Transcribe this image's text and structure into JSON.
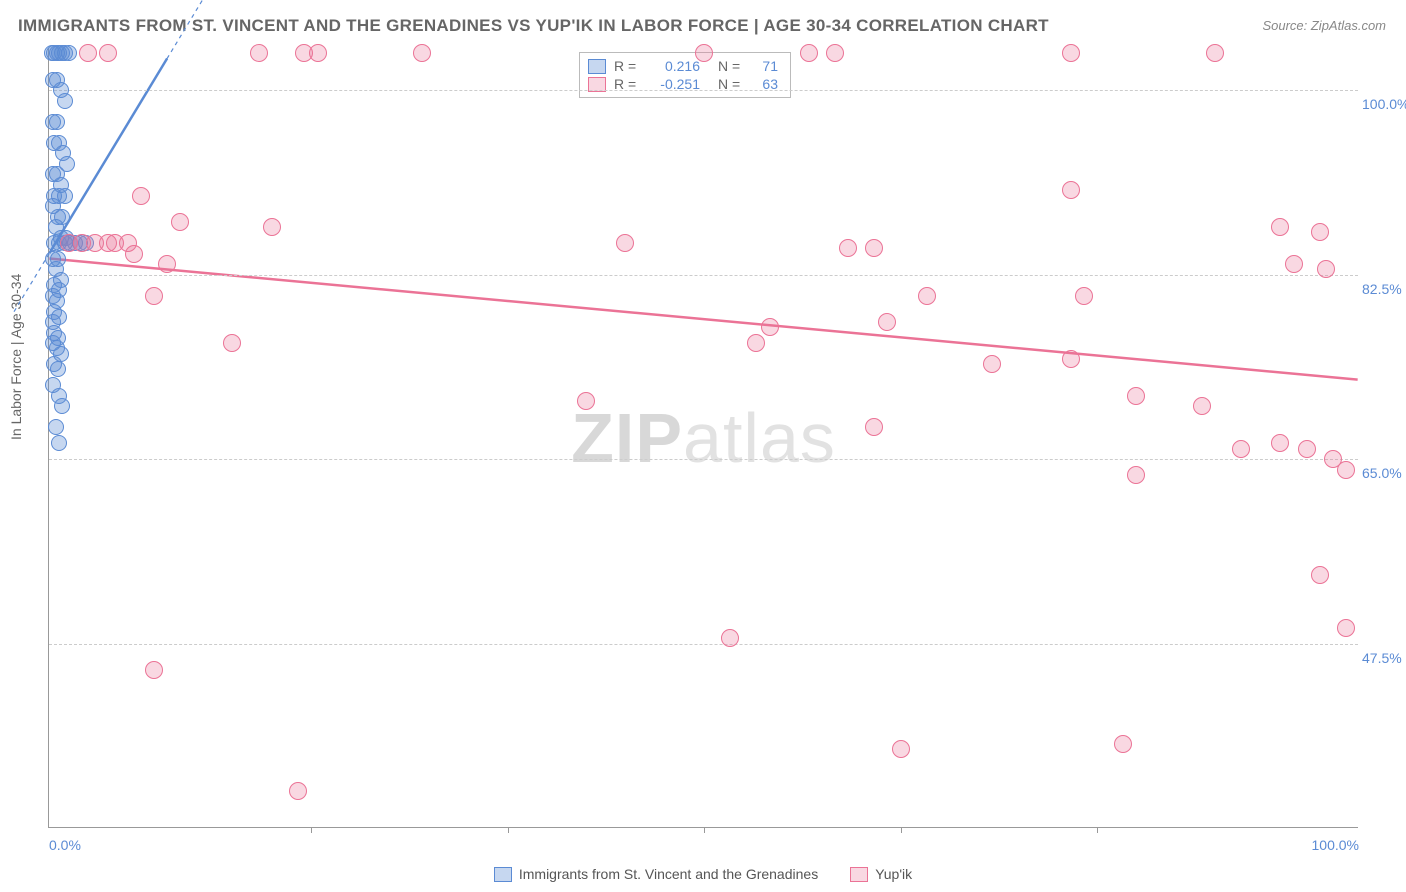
{
  "title": "IMMIGRANTS FROM ST. VINCENT AND THE GRENADINES VS YUP'IK IN LABOR FORCE | AGE 30-34 CORRELATION CHART",
  "source": "Source: ZipAtlas.com",
  "y_axis_label": "In Labor Force | Age 30-34",
  "watermark_a": "ZIP",
  "watermark_b": "atlas",
  "x_domain": [
    0,
    100
  ],
  "y_domain": [
    30,
    104
  ],
  "y_ticks": [
    {
      "v": 100.0,
      "label": "100.0%"
    },
    {
      "v": 82.5,
      "label": "82.5%"
    },
    {
      "v": 65.0,
      "label": "65.0%"
    },
    {
      "v": 47.5,
      "label": "47.5%"
    }
  ],
  "x_ticks": [
    {
      "v": 0.0,
      "label": "0.0%",
      "align": "left"
    },
    {
      "v": 100.0,
      "label": "100.0%",
      "align": "right"
    }
  ],
  "x_minor_ticks": [
    20,
    35,
    50,
    65,
    80
  ],
  "series": [
    {
      "name": "Immigrants from St. Vincent and the Grenadines",
      "color_fill": "rgba(91,139,212,0.35)",
      "color_stroke": "#5b8bd4",
      "r": 0.216,
      "n": 71,
      "trend": {
        "x1": 0,
        "y1": 84.5,
        "x2": 9,
        "y2": 103
      },
      "marker_radius": 8,
      "points": [
        [
          0.2,
          103.5
        ],
        [
          0.4,
          103.5
        ],
        [
          0.6,
          103.5
        ],
        [
          0.8,
          103.5
        ],
        [
          1.0,
          103.5
        ],
        [
          1.2,
          103.5
        ],
        [
          1.5,
          103.5
        ],
        [
          0.3,
          101
        ],
        [
          0.6,
          101
        ],
        [
          0.9,
          100
        ],
        [
          1.2,
          99
        ],
        [
          0.3,
          97
        ],
        [
          0.6,
          97
        ],
        [
          0.4,
          95
        ],
        [
          0.8,
          95
        ],
        [
          1.1,
          94
        ],
        [
          1.4,
          93
        ],
        [
          0.3,
          92
        ],
        [
          0.6,
          92
        ],
        [
          0.9,
          91
        ],
        [
          0.4,
          90
        ],
        [
          0.8,
          90
        ],
        [
          1.2,
          90
        ],
        [
          0.3,
          89
        ],
        [
          0.7,
          88
        ],
        [
          1.0,
          88
        ],
        [
          0.5,
          87
        ],
        [
          0.9,
          86
        ],
        [
          1.3,
          86
        ],
        [
          0.4,
          85.5
        ],
        [
          0.8,
          85.5
        ],
        [
          1.2,
          85.5
        ],
        [
          1.6,
          85.5
        ],
        [
          2.0,
          85.5
        ],
        [
          2.4,
          85.5
        ],
        [
          2.8,
          85.5
        ],
        [
          0.3,
          84
        ],
        [
          0.7,
          84
        ],
        [
          0.5,
          83
        ],
        [
          0.9,
          82
        ],
        [
          0.4,
          81.5
        ],
        [
          0.8,
          81
        ],
        [
          0.3,
          80.5
        ],
        [
          0.6,
          80
        ],
        [
          0.4,
          79
        ],
        [
          0.8,
          78.5
        ],
        [
          0.3,
          78
        ],
        [
          0.4,
          77
        ],
        [
          0.7,
          76.5
        ],
        [
          0.3,
          76
        ],
        [
          0.6,
          75.5
        ],
        [
          0.9,
          75
        ],
        [
          0.4,
          74
        ],
        [
          0.7,
          73.5
        ],
        [
          0.3,
          72
        ],
        [
          0.8,
          71
        ],
        [
          1.0,
          70
        ],
        [
          0.5,
          68
        ],
        [
          0.8,
          66.5
        ]
      ]
    },
    {
      "name": "Yup'ik",
      "color_fill": "rgba(235,115,150,0.28)",
      "color_stroke": "#eb7396",
      "r": -0.251,
      "n": 63,
      "trend": {
        "x1": 0,
        "y1": 84,
        "x2": 100,
        "y2": 72.5
      },
      "marker_radius": 9,
      "points": [
        [
          3,
          103.5
        ],
        [
          4.5,
          103.5
        ],
        [
          16,
          103.5
        ],
        [
          19.5,
          103.5
        ],
        [
          20.5,
          103.5
        ],
        [
          28.5,
          103.5
        ],
        [
          50,
          103.5
        ],
        [
          58,
          103.5
        ],
        [
          60,
          103.5
        ],
        [
          78,
          103.5
        ],
        [
          89,
          103.5
        ],
        [
          7,
          90
        ],
        [
          78,
          90.5
        ],
        [
          10,
          87.5
        ],
        [
          17,
          87
        ],
        [
          1.5,
          85.5
        ],
        [
          2.5,
          85.5
        ],
        [
          3.5,
          85.5
        ],
        [
          4.5,
          85.5
        ],
        [
          5,
          85.5
        ],
        [
          6,
          85.5
        ],
        [
          6.5,
          84.5
        ],
        [
          44,
          85.5
        ],
        [
          61,
          85
        ],
        [
          63,
          85
        ],
        [
          94,
          87
        ],
        [
          97,
          86.5
        ],
        [
          9,
          83.5
        ],
        [
          95,
          83.5
        ],
        [
          97.5,
          83
        ],
        [
          8,
          80.5
        ],
        [
          67,
          80.5
        ],
        [
          79,
          80.5
        ],
        [
          14,
          76
        ],
        [
          54,
          76
        ],
        [
          55,
          77.5
        ],
        [
          64,
          78
        ],
        [
          72,
          74
        ],
        [
          78,
          74.5
        ],
        [
          41,
          70.5
        ],
        [
          83,
          71
        ],
        [
          88,
          70
        ],
        [
          63,
          68
        ],
        [
          83,
          63.5
        ],
        [
          91,
          66
        ],
        [
          94,
          66.5
        ],
        [
          96,
          66
        ],
        [
          98,
          65
        ],
        [
          99,
          64
        ],
        [
          97,
          54
        ],
        [
          52,
          48
        ],
        [
          99,
          49
        ],
        [
          8,
          45
        ],
        [
          65,
          37.5
        ],
        [
          82,
          38
        ],
        [
          19,
          33.5
        ]
      ]
    }
  ],
  "bottom_legend": [
    {
      "label": "Immigrants from St. Vincent and the Grenadines",
      "fill": "rgba(91,139,212,0.35)",
      "stroke": "#5b8bd4"
    },
    {
      "label": "Yup'ik",
      "fill": "rgba(235,115,150,0.28)",
      "stroke": "#eb7396"
    }
  ]
}
